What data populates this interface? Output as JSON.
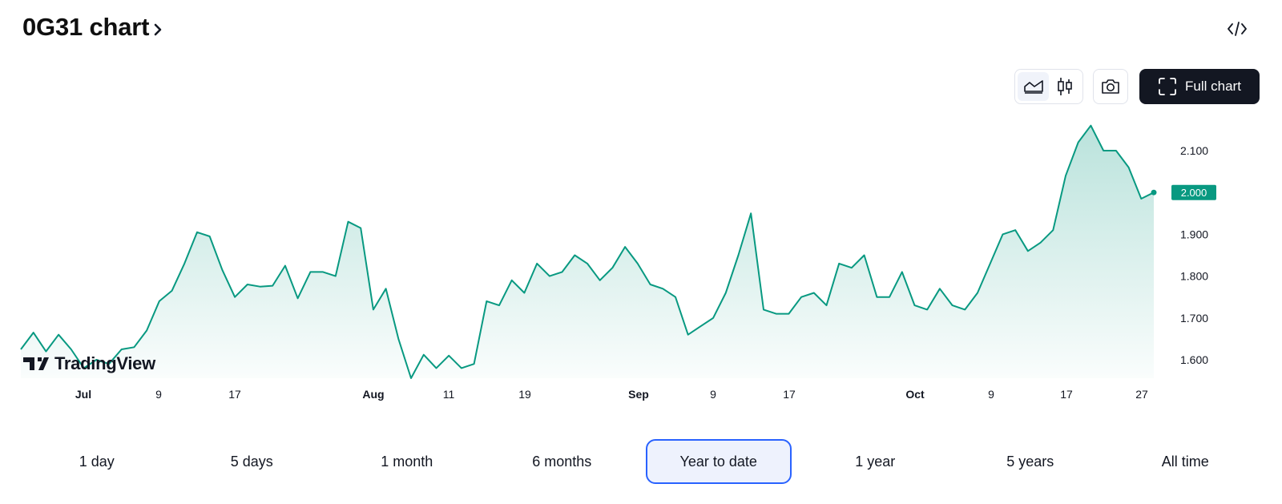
{
  "header": {
    "title": "0G31 chart"
  },
  "toolbar": {
    "full_chart_label": "Full chart",
    "icons": [
      "area-chart-icon",
      "candles-icon",
      "camera-icon",
      "fullscreen-icon",
      "embed-code-icon"
    ]
  },
  "watermark": "TradingView",
  "ranges": [
    "1 day",
    "5 days",
    "1 month",
    "6 months",
    "Year to date",
    "1 year",
    "5 years",
    "All time"
  ],
  "active_range": "Year to date",
  "colors": {
    "line": "#089981",
    "price_label_bg": "#089981",
    "accent": "#2962ff"
  },
  "chart_data": {
    "type": "area",
    "x_tick_labels": [
      "Jul",
      "9",
      "17",
      "Aug",
      "11",
      "19",
      "Sep",
      "9",
      "17",
      "Oct",
      "9",
      "17",
      "27"
    ],
    "y_tick_labels": [
      "2.100",
      "2.000",
      "1.900",
      "1.800",
      "1.700",
      "1.600"
    ],
    "ylim": [
      1.52,
      2.2
    ],
    "last_price": "2.000",
    "series": [
      {
        "values": [
          1.625,
          1.665,
          1.62,
          1.66,
          1.625,
          1.58,
          1.6,
          1.59,
          1.625,
          1.63,
          1.67,
          1.74,
          1.765,
          1.83,
          1.905,
          1.895,
          1.815,
          1.75,
          1.78,
          1.775,
          1.777,
          1.825,
          1.747,
          1.81,
          1.81,
          1.8,
          1.93,
          1.915,
          1.72,
          1.77,
          1.65,
          1.556,
          1.612,
          1.58,
          1.61,
          1.58,
          1.59,
          1.74,
          1.73,
          1.79,
          1.76,
          1.83,
          1.8,
          1.81,
          1.85,
          1.83,
          1.79,
          1.82,
          1.87,
          1.83,
          1.78,
          1.77,
          1.75,
          1.66,
          1.68,
          1.7,
          1.76,
          1.85,
          1.95,
          1.72,
          1.71,
          1.71,
          1.75,
          1.76,
          1.73,
          1.83,
          1.82,
          1.85,
          1.75,
          1.75,
          1.81,
          1.73,
          1.72,
          1.77,
          1.73,
          1.72,
          1.76,
          1.83,
          1.9,
          1.91,
          1.86,
          1.88,
          1.91,
          2.04,
          2.12,
          2.16,
          2.1,
          2.1,
          2.06,
          1.985,
          2.0
        ]
      }
    ]
  }
}
